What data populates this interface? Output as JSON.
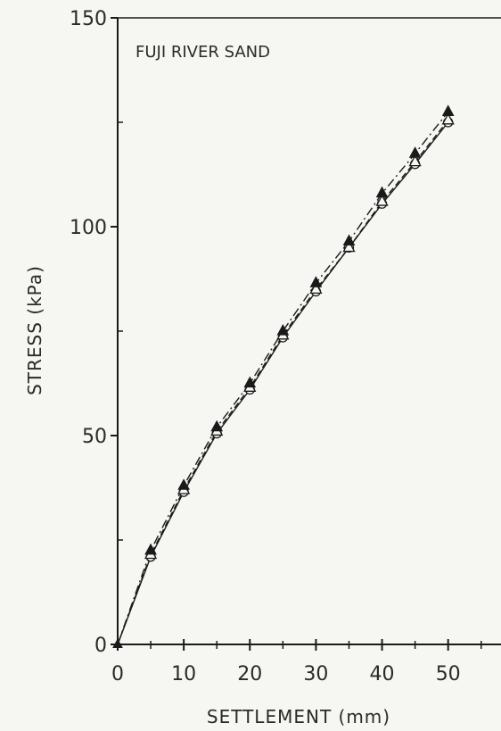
{
  "chart_data": {
    "type": "line",
    "title": "",
    "annotation": "FUJI RIVER SAND",
    "xlabel": "SETTLEMENT  (mm)",
    "ylabel": "STRESS  (kPa)",
    "xlim": [
      0,
      58
    ],
    "ylim": [
      0,
      150
    ],
    "xticks": [
      0,
      10,
      20,
      30,
      40,
      50
    ],
    "yticks": [
      0,
      50,
      100,
      150
    ],
    "x_minor_step": 5,
    "y_minor_step": 25,
    "grid": false,
    "legend": "none",
    "x": [
      0,
      5,
      10,
      15,
      20,
      25,
      30,
      35,
      40,
      45,
      50
    ],
    "series": [
      {
        "marker": "filled-triangle",
        "line_style": "dash-dot",
        "values": [
          0,
          22.5,
          38,
          52,
          62.5,
          75,
          86.5,
          96.5,
          108,
          117.5,
          127.5
        ]
      },
      {
        "marker": "open-triangle",
        "line_style": "dashed",
        "values": [
          0,
          21.5,
          37,
          51,
          61.5,
          74,
          85,
          95,
          106,
          115.5,
          125.5
        ]
      },
      {
        "marker": "open-circle",
        "line_style": "solid",
        "values": [
          0,
          21,
          36.5,
          50.5,
          61,
          73.5,
          84.5,
          95,
          105.5,
          115,
          125
        ]
      }
    ],
    "colors": {
      "ink": "#1a1a1a",
      "paper": "#f6f6f3"
    }
  }
}
